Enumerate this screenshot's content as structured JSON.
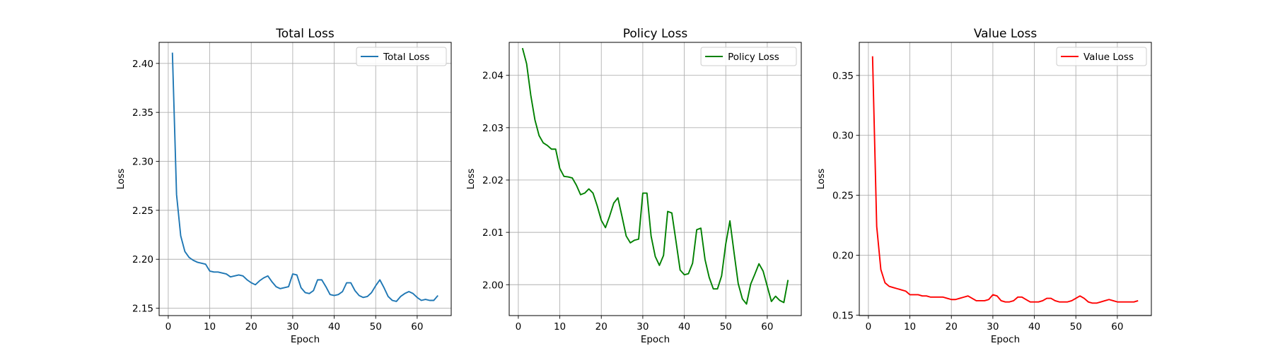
{
  "chart_data": [
    {
      "type": "line",
      "title": "Total Loss",
      "xlabel": "Epoch",
      "ylabel": "Loss",
      "xlim": [
        -2.2,
        68.2
      ],
      "ylim": [
        2.1425,
        2.4215
      ],
      "xticks": [
        0,
        10,
        20,
        30,
        40,
        50,
        60
      ],
      "yticks": [
        2.15,
        2.2,
        2.25,
        2.3,
        2.35,
        2.4
      ],
      "ytick_labels": [
        "2.15",
        "2.20",
        "2.25",
        "2.30",
        "2.35",
        "2.40"
      ],
      "grid": true,
      "legend_position": "top-right",
      "series": [
        {
          "name": "Total Loss",
          "color": "#1f77b4",
          "x": [
            1,
            2,
            3,
            4,
            5,
            6,
            7,
            8,
            9,
            10,
            11,
            12,
            13,
            14,
            15,
            16,
            17,
            18,
            19,
            20,
            21,
            22,
            23,
            24,
            25,
            26,
            27,
            28,
            29,
            30,
            31,
            32,
            33,
            34,
            35,
            36,
            37,
            38,
            39,
            40,
            41,
            42,
            43,
            44,
            45,
            46,
            47,
            48,
            49,
            50,
            51,
            52,
            53,
            54,
            55,
            56,
            57,
            58,
            59,
            60,
            61,
            62,
            63,
            64,
            65
          ],
          "values": [
            2.411,
            2.266,
            2.224,
            2.208,
            2.202,
            2.199,
            2.197,
            2.196,
            2.195,
            2.188,
            2.187,
            2.187,
            2.186,
            2.185,
            2.182,
            2.183,
            2.184,
            2.183,
            2.179,
            2.176,
            2.174,
            2.178,
            2.181,
            2.183,
            2.177,
            2.172,
            2.17,
            2.171,
            2.172,
            2.185,
            2.184,
            2.171,
            2.166,
            2.165,
            2.168,
            2.179,
            2.179,
            2.172,
            2.164,
            2.163,
            2.164,
            2.167,
            2.176,
            2.176,
            2.168,
            2.163,
            2.161,
            2.162,
            2.166,
            2.173,
            2.179,
            2.171,
            2.162,
            2.158,
            2.157,
            2.162,
            2.165,
            2.167,
            2.165,
            2.161,
            2.158,
            2.159,
            2.158,
            2.158,
            2.163
          ]
        }
      ]
    },
    {
      "type": "line",
      "title": "Policy Loss",
      "xlabel": "Epoch",
      "ylabel": "Loss",
      "xlim": [
        -2.2,
        68.2
      ],
      "ylim": [
        1.9941,
        2.0463
      ],
      "xticks": [
        0,
        10,
        20,
        30,
        40,
        50,
        60
      ],
      "yticks": [
        2.0,
        2.01,
        2.02,
        2.03,
        2.04
      ],
      "ytick_labels": [
        "2.00",
        "2.01",
        "2.02",
        "2.03",
        "2.04"
      ],
      "grid": true,
      "legend_position": "top-right",
      "series": [
        {
          "name": "Policy Loss",
          "color": "#008000",
          "x": [
            1,
            2,
            3,
            4,
            5,
            6,
            7,
            8,
            9,
            10,
            11,
            12,
            13,
            14,
            15,
            16,
            17,
            18,
            19,
            20,
            21,
            22,
            23,
            24,
            25,
            26,
            27,
            28,
            29,
            30,
            31,
            32,
            33,
            34,
            35,
            36,
            37,
            38,
            39,
            40,
            41,
            42,
            43,
            44,
            45,
            46,
            47,
            48,
            49,
            50,
            51,
            52,
            53,
            54,
            55,
            56,
            57,
            58,
            59,
            60,
            61,
            62,
            63,
            64,
            65
          ],
          "values": [
            2.0452,
            2.0422,
            2.0362,
            2.0315,
            2.0285,
            2.0271,
            2.0266,
            2.0259,
            2.0259,
            2.0222,
            2.0207,
            2.0206,
            2.0204,
            2.019,
            2.0172,
            2.0175,
            2.0183,
            2.0175,
            2.0151,
            2.0123,
            2.0109,
            2.0131,
            2.0156,
            2.0166,
            2.013,
            2.0093,
            2.008,
            2.0085,
            2.0087,
            2.0175,
            2.0175,
            2.0093,
            2.0054,
            2.0037,
            2.0056,
            2.014,
            2.0137,
            2.0083,
            2.0028,
            2.0019,
            2.0021,
            2.0041,
            2.0105,
            2.0108,
            2.0048,
            2.0014,
            1.9992,
            1.9992,
            2.0017,
            2.0078,
            2.0122,
            2.0061,
            2.0002,
            1.9973,
            1.9963,
            2.0001,
            2.002,
            2.004,
            2.0026,
            1.9997,
            1.9968,
            1.9978,
            1.997,
            1.9966,
            2.0009
          ]
        }
      ]
    },
    {
      "type": "line",
      "title": "Value Loss",
      "xlabel": "Epoch",
      "ylabel": "Loss",
      "xlim": [
        -2.2,
        68.2
      ],
      "ylim": [
        0.1496,
        0.3776
      ],
      "xticks": [
        0,
        10,
        20,
        30,
        40,
        50,
        60
      ],
      "yticks": [
        0.15,
        0.2,
        0.25,
        0.3,
        0.35
      ],
      "ytick_labels": [
        "0.15",
        "0.20",
        "0.25",
        "0.30",
        "0.35"
      ],
      "grid": true,
      "legend_position": "top-right",
      "series": [
        {
          "name": "Value Loss",
          "color": "#ff0000",
          "x": [
            1,
            2,
            3,
            4,
            5,
            6,
            7,
            8,
            9,
            10,
            11,
            12,
            13,
            14,
            15,
            16,
            17,
            18,
            19,
            20,
            21,
            22,
            23,
            24,
            25,
            26,
            27,
            28,
            29,
            30,
            31,
            32,
            33,
            34,
            35,
            36,
            37,
            38,
            39,
            40,
            41,
            42,
            43,
            44,
            45,
            46,
            47,
            48,
            49,
            50,
            51,
            52,
            53,
            54,
            55,
            56,
            57,
            58,
            59,
            60,
            61,
            62,
            63,
            64,
            65
          ],
          "values": [
            0.366,
            0.224,
            0.188,
            0.177,
            0.174,
            0.173,
            0.172,
            0.171,
            0.17,
            0.167,
            0.167,
            0.167,
            0.166,
            0.166,
            0.165,
            0.165,
            0.165,
            0.165,
            0.164,
            0.163,
            0.163,
            0.164,
            0.165,
            0.166,
            0.164,
            0.162,
            0.162,
            0.162,
            0.163,
            0.167,
            0.166,
            0.162,
            0.161,
            0.161,
            0.162,
            0.165,
            0.165,
            0.163,
            0.161,
            0.161,
            0.161,
            0.162,
            0.164,
            0.164,
            0.162,
            0.161,
            0.161,
            0.161,
            0.162,
            0.164,
            0.166,
            0.164,
            0.161,
            0.16,
            0.16,
            0.161,
            0.162,
            0.163,
            0.162,
            0.161,
            0.161,
            0.161,
            0.161,
            0.161,
            0.162
          ]
        }
      ]
    }
  ]
}
